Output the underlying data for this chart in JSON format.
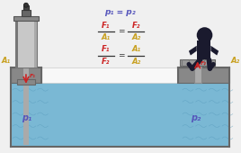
{
  "bg_color": "#f0f0f0",
  "water_color": "#7ab8d4",
  "water_light": "#a8d4e8",
  "tank_dark": "#666666",
  "tank_gray": "#999999",
  "tank_light": "#cccccc",
  "white_panel": "#f8f8f8",
  "formula_blue": "#5555bb",
  "formula_red": "#cc2222",
  "formula_gold": "#c8a020",
  "person_color": "#1a1a2e",
  "arrow_red": "#cc2222",
  "label_A1": "A₁",
  "label_A2": "A₂",
  "label_p1": "p₁",
  "label_p2": "p₂",
  "eq_top": "p₁ = p₂",
  "F1": "F₁",
  "F2": "F₂",
  "A1": "A₁",
  "A2": "A₂"
}
